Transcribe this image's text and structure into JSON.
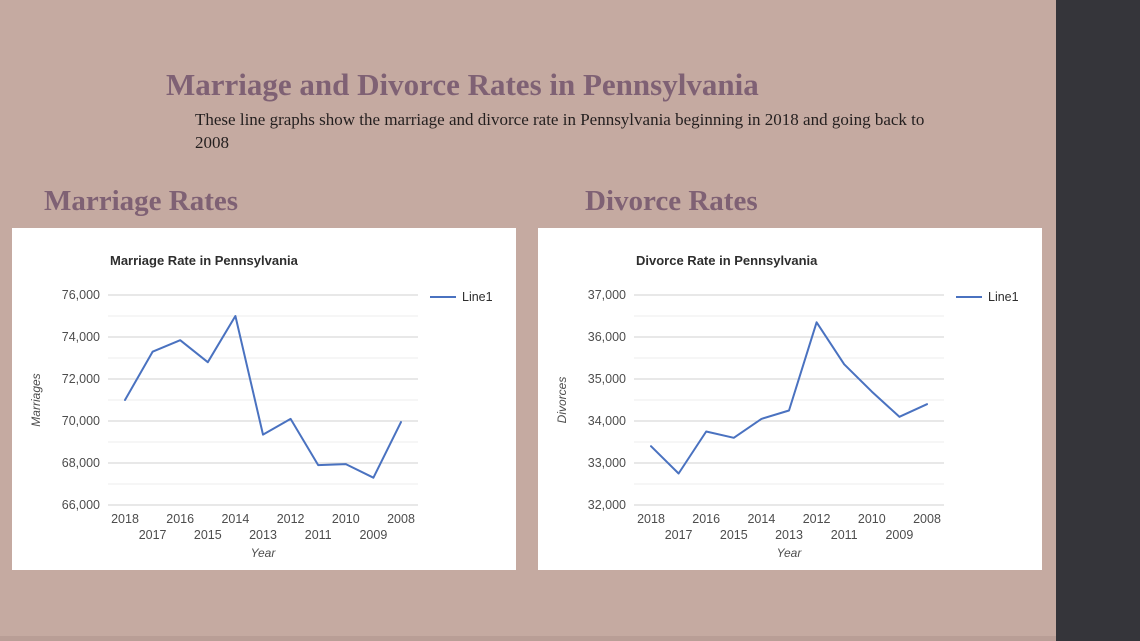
{
  "slide": {
    "title": "Marriage and Divorce Rates in Pennsylvania",
    "subtitle": "These line graphs show the marriage and divorce rate in Pennsylvania beginning in 2018 and going back to 2008",
    "section_headings": {
      "marriage": "Marriage Rates",
      "divorce": "Divorce Rates"
    }
  },
  "colors": {
    "background": "#c5aaa1",
    "side_bar": "#35353a",
    "heading_text": "#7f6174",
    "body_text": "#241f1f",
    "panel_bg": "#ffffff",
    "line": "#4a72c0",
    "grid_major": "#d2d2d2",
    "grid_minor": "#ececec",
    "tick_text": "#4d4d4d",
    "chart_title_text": "#2e2e2e"
  },
  "chart_data": [
    {
      "type": "line",
      "title": "Marriage Rate in Pennsylvania",
      "xlabel": "Year",
      "ylabel": "Marriages",
      "grid": true,
      "legend_position": "right",
      "categories": [
        "2018",
        "2017",
        "2016",
        "2015",
        "2014",
        "2013",
        "2012",
        "2011",
        "2010",
        "2009",
        "2008"
      ],
      "series": [
        {
          "name": "Line1",
          "values": [
            71000,
            73300,
            73850,
            72800,
            75000,
            69350,
            70100,
            67900,
            67950,
            67300,
            69950
          ]
        }
      ],
      "ylim": [
        66000,
        76000
      ],
      "ytick_step": 2000,
      "minor_gridlines_between_majors": 1
    },
    {
      "type": "line",
      "title": "Divorce Rate in Pennsylvania",
      "xlabel": "Year",
      "ylabel": "Divorces",
      "grid": true,
      "legend_position": "right",
      "categories": [
        "2018",
        "2017",
        "2016",
        "2015",
        "2014",
        "2013",
        "2012",
        "2011",
        "2010",
        "2009",
        "2008"
      ],
      "series": [
        {
          "name": "Line1",
          "values": [
            33400,
            32750,
            33750,
            33600,
            34050,
            34250,
            36350,
            35350,
            34700,
            34100,
            34400
          ]
        }
      ],
      "ylim": [
        32000,
        37000
      ],
      "ytick_step": 1000,
      "minor_gridlines_between_majors": 1
    }
  ]
}
